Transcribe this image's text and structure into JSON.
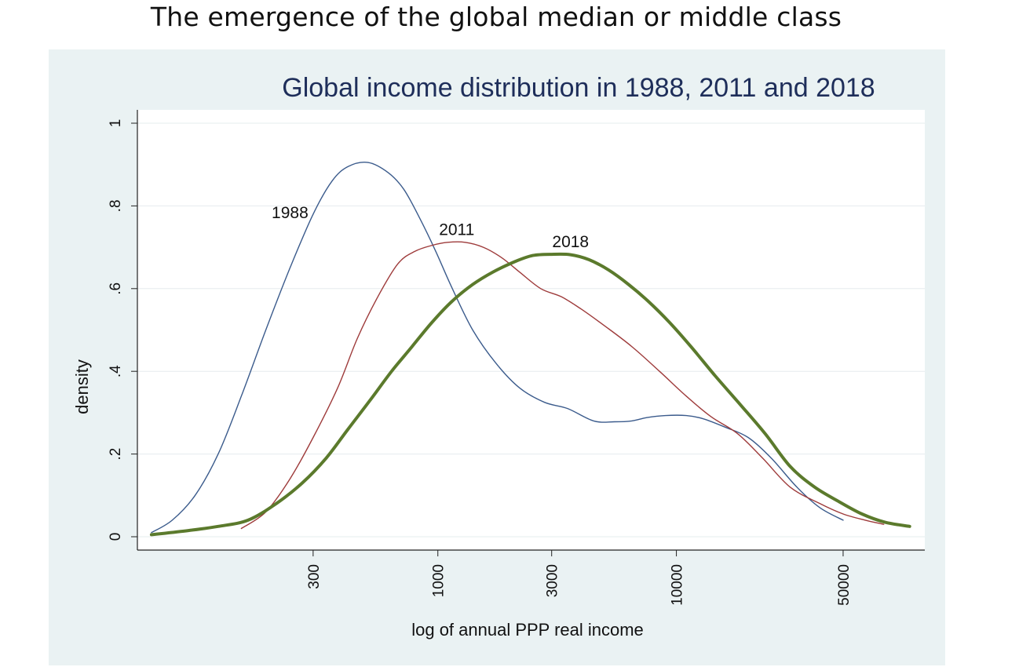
{
  "slide": {
    "title": "The emergence of the global median or middle class"
  },
  "chart_data": {
    "type": "line",
    "title": "Global income distribution in 1988, 2011 and 2018",
    "xlabel": "log of annual PPP real income",
    "ylabel": "density",
    "x_scale": "log",
    "x_ticks": [
      300,
      1000,
      3000,
      10000,
      50000
    ],
    "x_tick_labels": [
      "300",
      "1000",
      "3000",
      "10000",
      "50000"
    ],
    "xlim": [
      55,
      110000
    ],
    "y_ticks": [
      0,
      0.2,
      0.4,
      0.6,
      0.8,
      1
    ],
    "y_tick_labels": [
      "0",
      ".2",
      ".4",
      ".6",
      ".8",
      "1"
    ],
    "ylim": [
      0,
      1
    ],
    "grid": true,
    "legend": "inline labels",
    "series": [
      {
        "name": "1988",
        "color": "#3b5b8c",
        "width": 1.4,
        "label": {
          "text": "1988",
          "x": 240,
          "y": 0.77
        },
        "points": [
          [
            63,
            0.01
          ],
          [
            77,
            0.04
          ],
          [
            96,
            0.1
          ],
          [
            120,
            0.2
          ],
          [
            150,
            0.34
          ],
          [
            190,
            0.5
          ],
          [
            240,
            0.65
          ],
          [
            300,
            0.78
          ],
          [
            360,
            0.86
          ],
          [
            420,
            0.895
          ],
          [
            510,
            0.905
          ],
          [
            620,
            0.88
          ],
          [
            720,
            0.84
          ],
          [
            840,
            0.77
          ],
          [
            980,
            0.69
          ],
          [
            1150,
            0.6
          ],
          [
            1400,
            0.5
          ],
          [
            1750,
            0.42
          ],
          [
            2200,
            0.36
          ],
          [
            2800,
            0.325
          ],
          [
            3500,
            0.31
          ],
          [
            4500,
            0.28
          ],
          [
            5500,
            0.278
          ],
          [
            6500,
            0.28
          ],
          [
            7500,
            0.288
          ],
          [
            9000,
            0.293
          ],
          [
            11000,
            0.293
          ],
          [
            13000,
            0.285
          ],
          [
            16000,
            0.265
          ],
          [
            20000,
            0.24
          ],
          [
            25000,
            0.19
          ],
          [
            32000,
            0.12
          ],
          [
            40000,
            0.07
          ],
          [
            50000,
            0.04
          ]
        ]
      },
      {
        "name": "2011",
        "color": "#9e3b3b",
        "width": 1.4,
        "label": {
          "text": "2011",
          "x": 1200,
          "y": 0.73
        },
        "points": [
          [
            150,
            0.02
          ],
          [
            190,
            0.06
          ],
          [
            240,
            0.14
          ],
          [
            300,
            0.24
          ],
          [
            380,
            0.36
          ],
          [
            460,
            0.48
          ],
          [
            560,
            0.58
          ],
          [
            680,
            0.66
          ],
          [
            800,
            0.69
          ],
          [
            950,
            0.705
          ],
          [
            1100,
            0.712
          ],
          [
            1300,
            0.712
          ],
          [
            1550,
            0.7
          ],
          [
            1850,
            0.675
          ],
          [
            2200,
            0.64
          ],
          [
            2700,
            0.6
          ],
          [
            3300,
            0.58
          ],
          [
            4000,
            0.55
          ],
          [
            5000,
            0.51
          ],
          [
            6500,
            0.46
          ],
          [
            8500,
            0.4
          ],
          [
            11000,
            0.34
          ],
          [
            14000,
            0.29
          ],
          [
            18000,
            0.25
          ],
          [
            23000,
            0.19
          ],
          [
            30000,
            0.12
          ],
          [
            40000,
            0.08
          ],
          [
            50000,
            0.055
          ],
          [
            62000,
            0.04
          ],
          [
            74000,
            0.03
          ]
        ]
      },
      {
        "name": "2018",
        "color": "#5b7a2c",
        "width": 4,
        "label": {
          "text": "2018",
          "x": 3600,
          "y": 0.7
        },
        "points": [
          [
            63,
            0.005
          ],
          [
            90,
            0.015
          ],
          [
            120,
            0.025
          ],
          [
            160,
            0.04
          ],
          [
            210,
            0.08
          ],
          [
            270,
            0.13
          ],
          [
            340,
            0.19
          ],
          [
            420,
            0.26
          ],
          [
            520,
            0.33
          ],
          [
            640,
            0.4
          ],
          [
            780,
            0.46
          ],
          [
            950,
            0.52
          ],
          [
            1150,
            0.57
          ],
          [
            1400,
            0.61
          ],
          [
            1700,
            0.64
          ],
          [
            2100,
            0.665
          ],
          [
            2500,
            0.68
          ],
          [
            3000,
            0.683
          ],
          [
            3600,
            0.682
          ],
          [
            4300,
            0.67
          ],
          [
            5200,
            0.645
          ],
          [
            6300,
            0.61
          ],
          [
            7600,
            0.57
          ],
          [
            9300,
            0.52
          ],
          [
            11500,
            0.46
          ],
          [
            14500,
            0.39
          ],
          [
            18500,
            0.32
          ],
          [
            23500,
            0.25
          ],
          [
            30000,
            0.17
          ],
          [
            38000,
            0.12
          ],
          [
            48000,
            0.085
          ],
          [
            60000,
            0.055
          ],
          [
            75000,
            0.035
          ],
          [
            95000,
            0.025
          ]
        ]
      }
    ]
  }
}
